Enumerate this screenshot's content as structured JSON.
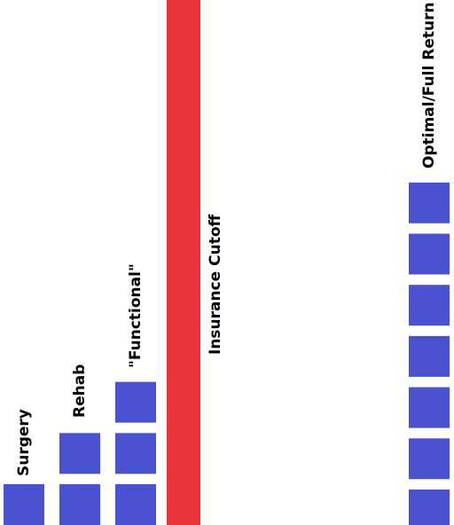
{
  "columns": [
    {
      "label": "Surgery",
      "blocks": 1
    },
    {
      "label": "Rehab",
      "blocks": 2
    },
    {
      "label": "\"Functional\"",
      "blocks": 3
    },
    {
      "label": "Optimal/Full Return",
      "blocks": 7
    }
  ],
  "cutoff": {
    "label": "Insurance Cutoff"
  }
}
